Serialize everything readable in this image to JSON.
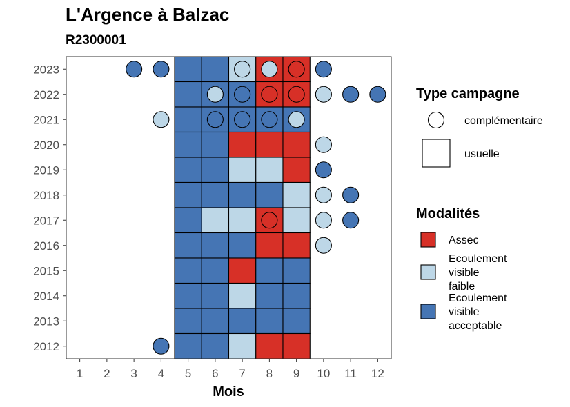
{
  "chart_data": {
    "type": "heatmap",
    "title": "L'Argence à Balzac",
    "subtitle": "R2300001",
    "xlabel": "Mois",
    "ylabel": "",
    "x_ticks": [
      1,
      2,
      3,
      4,
      5,
      6,
      7,
      8,
      9,
      10,
      11,
      12
    ],
    "y_ticks": [
      2012,
      2013,
      2014,
      2015,
      2016,
      2017,
      2018,
      2019,
      2020,
      2021,
      2022,
      2023
    ],
    "grid": false,
    "colors": {
      "assec": "#d73027",
      "faible": "#bdd7e7",
      "acceptable": "#4575b4",
      "outline": "#000000"
    },
    "legend_shape": {
      "title": "Type campagne",
      "items": [
        {
          "key": "complementaire",
          "label": "complémentaire",
          "shape": "circle"
        },
        {
          "key": "usuelle",
          "label": "usuelle",
          "shape": "square"
        }
      ]
    },
    "legend_fill": {
      "title": "Modalités",
      "items": [
        {
          "key": "assec",
          "lines": [
            "Assec"
          ]
        },
        {
          "key": "faible",
          "lines": [
            "Ecoulement",
            "visible",
            "faible"
          ]
        },
        {
          "key": "acceptable",
          "lines": [
            "Ecoulement",
            "visible",
            "acceptable"
          ]
        }
      ]
    },
    "observations": [
      {
        "year": 2023,
        "month": 3,
        "campaign": "complementaire",
        "modality": "acceptable"
      },
      {
        "year": 2023,
        "month": 4,
        "campaign": "complementaire",
        "modality": "acceptable"
      },
      {
        "year": 2023,
        "month": 5,
        "campaign": "usuelle",
        "modality": "acceptable"
      },
      {
        "year": 2023,
        "month": 6,
        "campaign": "usuelle",
        "modality": "acceptable"
      },
      {
        "year": 2023,
        "month": 7,
        "campaign": "usuelle",
        "modality": "faible"
      },
      {
        "year": 2023,
        "month": 7,
        "campaign": "complementaire",
        "modality": "faible"
      },
      {
        "year": 2023,
        "month": 8,
        "campaign": "usuelle",
        "modality": "assec"
      },
      {
        "year": 2023,
        "month": 8,
        "campaign": "complementaire",
        "modality": "faible"
      },
      {
        "year": 2023,
        "month": 9,
        "campaign": "usuelle",
        "modality": "assec"
      },
      {
        "year": 2023,
        "month": 9,
        "campaign": "complementaire",
        "modality": "assec"
      },
      {
        "year": 2023,
        "month": 10,
        "campaign": "complementaire",
        "modality": "acceptable"
      },
      {
        "year": 2022,
        "month": 5,
        "campaign": "usuelle",
        "modality": "acceptable"
      },
      {
        "year": 2022,
        "month": 6,
        "campaign": "usuelle",
        "modality": "acceptable"
      },
      {
        "year": 2022,
        "month": 6,
        "campaign": "complementaire",
        "modality": "faible"
      },
      {
        "year": 2022,
        "month": 7,
        "campaign": "usuelle",
        "modality": "acceptable"
      },
      {
        "year": 2022,
        "month": 7,
        "campaign": "complementaire",
        "modality": "acceptable"
      },
      {
        "year": 2022,
        "month": 8,
        "campaign": "usuelle",
        "modality": "assec"
      },
      {
        "year": 2022,
        "month": 8,
        "campaign": "complementaire",
        "modality": "assec"
      },
      {
        "year": 2022,
        "month": 9,
        "campaign": "usuelle",
        "modality": "assec"
      },
      {
        "year": 2022,
        "month": 9,
        "campaign": "complementaire",
        "modality": "assec"
      },
      {
        "year": 2022,
        "month": 10,
        "campaign": "complementaire",
        "modality": "faible"
      },
      {
        "year": 2022,
        "month": 11,
        "campaign": "complementaire",
        "modality": "acceptable"
      },
      {
        "year": 2022,
        "month": 12,
        "campaign": "complementaire",
        "modality": "acceptable"
      },
      {
        "year": 2021,
        "month": 4,
        "campaign": "complementaire",
        "modality": "faible"
      },
      {
        "year": 2021,
        "month": 5,
        "campaign": "usuelle",
        "modality": "acceptable"
      },
      {
        "year": 2021,
        "month": 6,
        "campaign": "usuelle",
        "modality": "acceptable"
      },
      {
        "year": 2021,
        "month": 6,
        "campaign": "complementaire",
        "modality": "acceptable"
      },
      {
        "year": 2021,
        "month": 7,
        "campaign": "usuelle",
        "modality": "acceptable"
      },
      {
        "year": 2021,
        "month": 7,
        "campaign": "complementaire",
        "modality": "acceptable"
      },
      {
        "year": 2021,
        "month": 8,
        "campaign": "usuelle",
        "modality": "acceptable"
      },
      {
        "year": 2021,
        "month": 8,
        "campaign": "complementaire",
        "modality": "acceptable"
      },
      {
        "year": 2021,
        "month": 9,
        "campaign": "usuelle",
        "modality": "acceptable"
      },
      {
        "year": 2021,
        "month": 9,
        "campaign": "complementaire",
        "modality": "faible"
      },
      {
        "year": 2020,
        "month": 5,
        "campaign": "usuelle",
        "modality": "acceptable"
      },
      {
        "year": 2020,
        "month": 6,
        "campaign": "usuelle",
        "modality": "acceptable"
      },
      {
        "year": 2020,
        "month": 7,
        "campaign": "usuelle",
        "modality": "assec"
      },
      {
        "year": 2020,
        "month": 8,
        "campaign": "usuelle",
        "modality": "assec"
      },
      {
        "year": 2020,
        "month": 9,
        "campaign": "usuelle",
        "modality": "assec"
      },
      {
        "year": 2020,
        "month": 10,
        "campaign": "complementaire",
        "modality": "faible"
      },
      {
        "year": 2019,
        "month": 5,
        "campaign": "usuelle",
        "modality": "acceptable"
      },
      {
        "year": 2019,
        "month": 6,
        "campaign": "usuelle",
        "modality": "acceptable"
      },
      {
        "year": 2019,
        "month": 7,
        "campaign": "usuelle",
        "modality": "faible"
      },
      {
        "year": 2019,
        "month": 8,
        "campaign": "usuelle",
        "modality": "faible"
      },
      {
        "year": 2019,
        "month": 9,
        "campaign": "usuelle",
        "modality": "assec"
      },
      {
        "year": 2019,
        "month": 10,
        "campaign": "complementaire",
        "modality": "acceptable"
      },
      {
        "year": 2018,
        "month": 5,
        "campaign": "usuelle",
        "modality": "acceptable"
      },
      {
        "year": 2018,
        "month": 6,
        "campaign": "usuelle",
        "modality": "acceptable"
      },
      {
        "year": 2018,
        "month": 7,
        "campaign": "usuelle",
        "modality": "acceptable"
      },
      {
        "year": 2018,
        "month": 8,
        "campaign": "usuelle",
        "modality": "acceptable"
      },
      {
        "year": 2018,
        "month": 9,
        "campaign": "usuelle",
        "modality": "faible"
      },
      {
        "year": 2018,
        "month": 10,
        "campaign": "complementaire",
        "modality": "faible"
      },
      {
        "year": 2018,
        "month": 11,
        "campaign": "complementaire",
        "modality": "acceptable"
      },
      {
        "year": 2017,
        "month": 5,
        "campaign": "usuelle",
        "modality": "acceptable"
      },
      {
        "year": 2017,
        "month": 6,
        "campaign": "usuelle",
        "modality": "faible"
      },
      {
        "year": 2017,
        "month": 7,
        "campaign": "usuelle",
        "modality": "faible"
      },
      {
        "year": 2017,
        "month": 8,
        "campaign": "usuelle",
        "modality": "assec"
      },
      {
        "year": 2017,
        "month": 8,
        "campaign": "complementaire",
        "modality": "assec"
      },
      {
        "year": 2017,
        "month": 9,
        "campaign": "usuelle",
        "modality": "faible"
      },
      {
        "year": 2017,
        "month": 10,
        "campaign": "complementaire",
        "modality": "faible"
      },
      {
        "year": 2017,
        "month": 11,
        "campaign": "complementaire",
        "modality": "acceptable"
      },
      {
        "year": 2016,
        "month": 5,
        "campaign": "usuelle",
        "modality": "acceptable"
      },
      {
        "year": 2016,
        "month": 6,
        "campaign": "usuelle",
        "modality": "acceptable"
      },
      {
        "year": 2016,
        "month": 7,
        "campaign": "usuelle",
        "modality": "acceptable"
      },
      {
        "year": 2016,
        "month": 8,
        "campaign": "usuelle",
        "modality": "assec"
      },
      {
        "year": 2016,
        "month": 9,
        "campaign": "usuelle",
        "modality": "assec"
      },
      {
        "year": 2016,
        "month": 10,
        "campaign": "complementaire",
        "modality": "faible"
      },
      {
        "year": 2015,
        "month": 5,
        "campaign": "usuelle",
        "modality": "acceptable"
      },
      {
        "year": 2015,
        "month": 6,
        "campaign": "usuelle",
        "modality": "acceptable"
      },
      {
        "year": 2015,
        "month": 7,
        "campaign": "usuelle",
        "modality": "assec"
      },
      {
        "year": 2015,
        "month": 8,
        "campaign": "usuelle",
        "modality": "acceptable"
      },
      {
        "year": 2015,
        "month": 9,
        "campaign": "usuelle",
        "modality": "acceptable"
      },
      {
        "year": 2014,
        "month": 5,
        "campaign": "usuelle",
        "modality": "acceptable"
      },
      {
        "year": 2014,
        "month": 6,
        "campaign": "usuelle",
        "modality": "acceptable"
      },
      {
        "year": 2014,
        "month": 7,
        "campaign": "usuelle",
        "modality": "faible"
      },
      {
        "year": 2014,
        "month": 8,
        "campaign": "usuelle",
        "modality": "acceptable"
      },
      {
        "year": 2014,
        "month": 9,
        "campaign": "usuelle",
        "modality": "acceptable"
      },
      {
        "year": 2013,
        "month": 5,
        "campaign": "usuelle",
        "modality": "acceptable"
      },
      {
        "year": 2013,
        "month": 6,
        "campaign": "usuelle",
        "modality": "acceptable"
      },
      {
        "year": 2013,
        "month": 7,
        "campaign": "usuelle",
        "modality": "acceptable"
      },
      {
        "year": 2013,
        "month": 8,
        "campaign": "usuelle",
        "modality": "acceptable"
      },
      {
        "year": 2013,
        "month": 9,
        "campaign": "usuelle",
        "modality": "acceptable"
      },
      {
        "year": 2012,
        "month": 4,
        "campaign": "complementaire",
        "modality": "acceptable"
      },
      {
        "year": 2012,
        "month": 5,
        "campaign": "usuelle",
        "modality": "acceptable"
      },
      {
        "year": 2012,
        "month": 6,
        "campaign": "usuelle",
        "modality": "acceptable"
      },
      {
        "year": 2012,
        "month": 7,
        "campaign": "usuelle",
        "modality": "faible"
      },
      {
        "year": 2012,
        "month": 8,
        "campaign": "usuelle",
        "modality": "assec"
      },
      {
        "year": 2012,
        "month": 9,
        "campaign": "usuelle",
        "modality": "assec"
      }
    ]
  }
}
